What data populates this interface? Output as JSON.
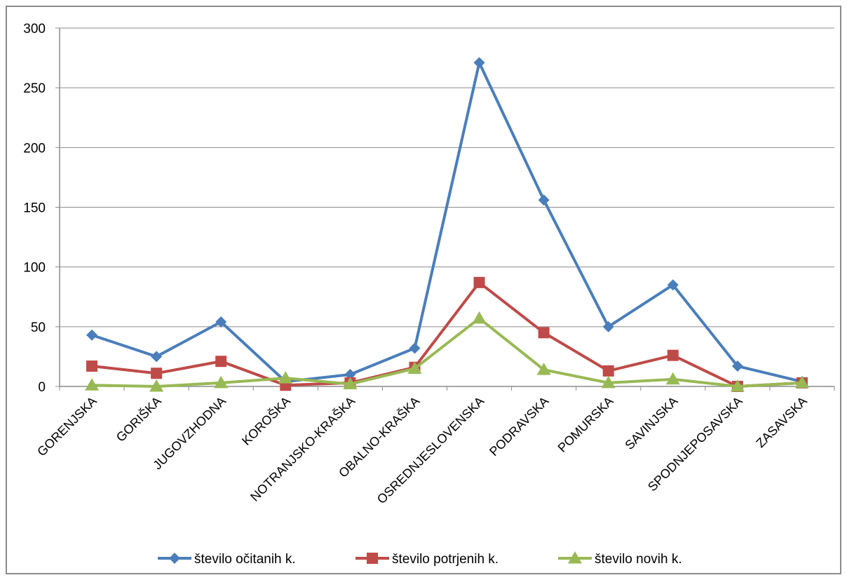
{
  "chart_data": {
    "type": "line",
    "title": "",
    "xlabel": "",
    "ylabel": "",
    "categories": [
      "GORENJSKA",
      "GORIŠKA",
      "JUGOVZHODNA",
      "KOROŠKA",
      "NOTRANJSKO-KRAŠKA",
      "OBALNO-KRAŠKA",
      "OSREDNJESLOVENSKA",
      "PODRAVSKA",
      "POMURSKA",
      "SAVINJSKA",
      "SPODNJEPOSAVSKA",
      "ZASAVSKA"
    ],
    "ylim": [
      0,
      300
    ],
    "yticks": [
      "0",
      "50",
      "100",
      "150",
      "200",
      "250",
      "300"
    ],
    "grid": true,
    "legend_position": "bottom",
    "series": [
      {
        "name": "število očitanih k.",
        "color": "#4a7ebb",
        "marker": "diamond",
        "values": [
          43,
          25,
          54,
          4,
          10,
          32,
          271,
          156,
          50,
          85,
          17,
          4
        ]
      },
      {
        "name": "število potrjenih k.",
        "color": "#be4b48",
        "marker": "square",
        "values": [
          17,
          11,
          21,
          1,
          3,
          16,
          87,
          45,
          13,
          26,
          0,
          3
        ]
      },
      {
        "name": "število novih k.",
        "color": "#98b954",
        "marker": "triangle",
        "values": [
          1,
          0,
          3,
          7,
          2,
          15,
          57,
          14,
          3,
          6,
          0,
          3
        ]
      }
    ]
  }
}
